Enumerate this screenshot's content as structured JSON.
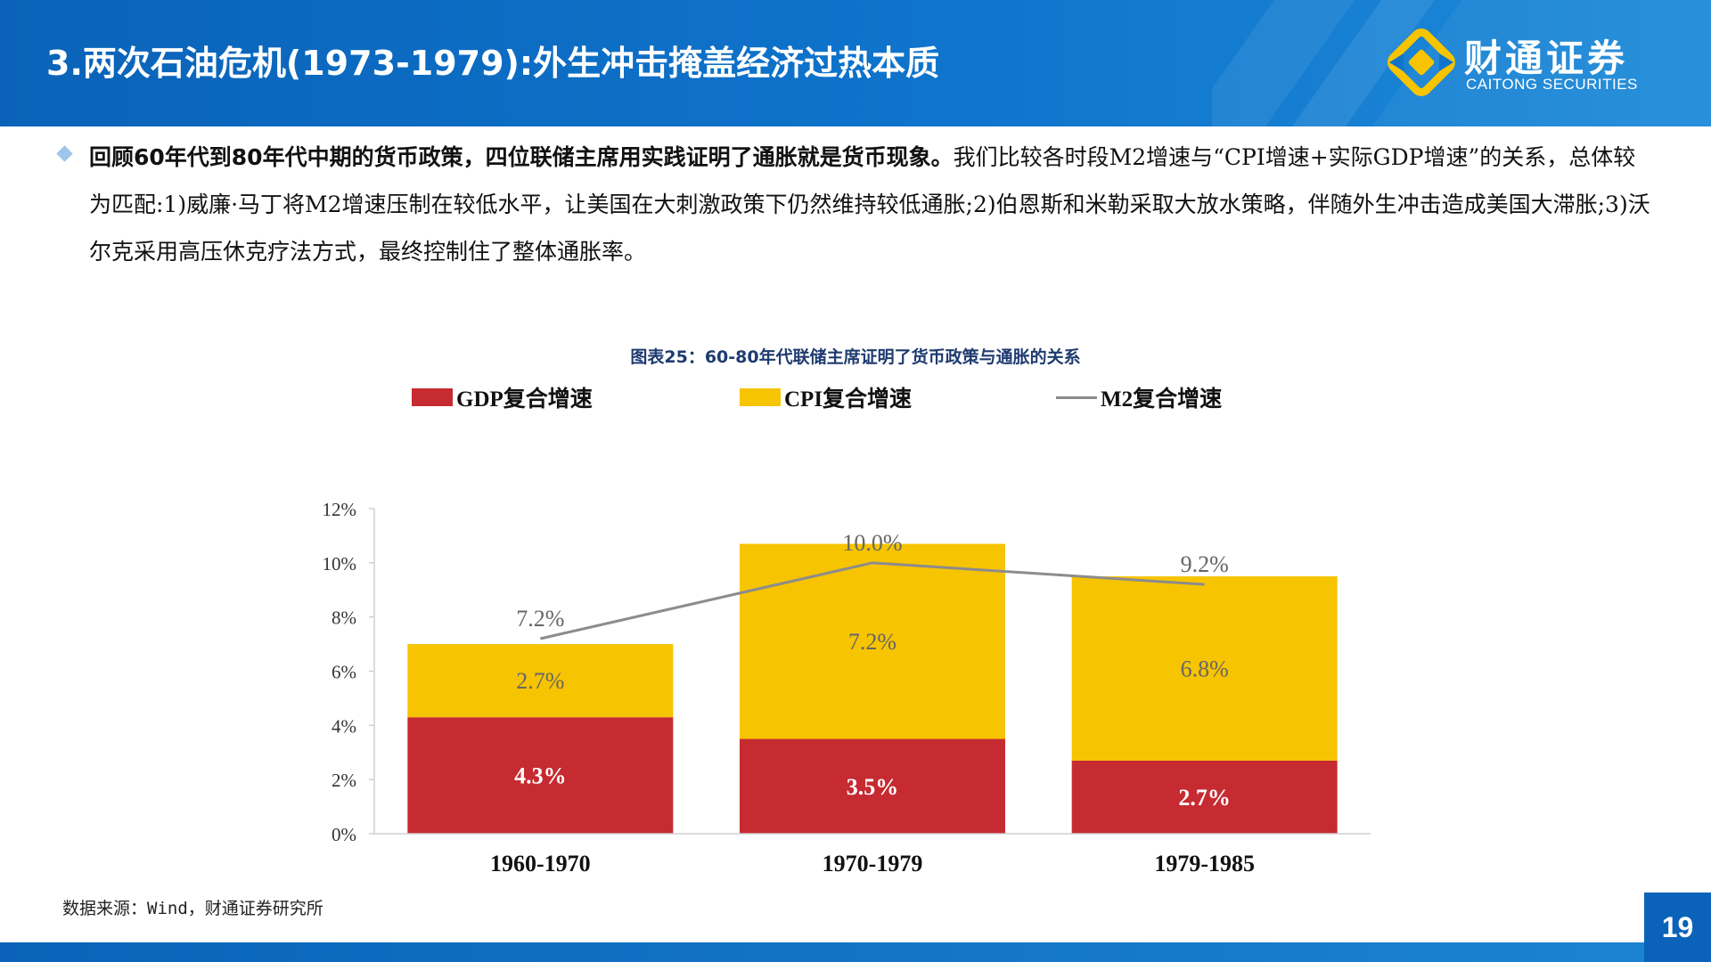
{
  "header": {
    "title": "3.两次石油危机(1973-1979):外生冲击掩盖经济过热本质"
  },
  "logo": {
    "name_cn": "财通证券",
    "name_en": "CAITONG SECURITIES",
    "icon": "caitong-logo-icon",
    "color": "#f6c400"
  },
  "intro": {
    "bold": "回顾60年代到80年代中期的货币政策，四位联储主席用实践证明了通胀就是货币现象。",
    "rest": "我们比较各时段M2增速与“CPI增速+实际GDP增速”的关系，总体较为匹配:1)威廉·马丁将M2增速压制在较低水平，让美国在大刺激政策下仍然维持较低通胀;2)伯恩斯和米勒采取大放水策略，伴随外生冲击造成美国大滞胀;3)沃尔克采用高压休克疗法方式，最终控制住了整体通胀率。"
  },
  "figure_title": "图表25：60-80年代联储主席证明了货币政策与通胀的关系",
  "chart_data": {
    "type": "bar",
    "stacked": true,
    "categories": [
      "1960-1970",
      "1970-1979",
      "1979-1985"
    ],
    "series": [
      {
        "name": "GDP复合增速",
        "type": "bar",
        "values": [
          4.3,
          3.5,
          2.7
        ],
        "labels": [
          "4.3%",
          "3.5%",
          "2.7%"
        ],
        "color": "#c62b31"
      },
      {
        "name": "CPI复合增速",
        "type": "bar",
        "values": [
          2.7,
          7.2,
          6.8
        ],
        "labels": [
          "2.7%",
          "7.2%",
          "6.8%"
        ],
        "color": "#f6c400"
      },
      {
        "name": "M2复合增速",
        "type": "line",
        "values": [
          7.2,
          10.0,
          9.2
        ],
        "labels": [
          "7.2%",
          "10.0%",
          "9.2%"
        ],
        "color": "#8c8c8c"
      }
    ],
    "yticks": [
      "0%",
      "2%",
      "4%",
      "6%",
      "8%",
      "10%",
      "12%"
    ],
    "ylim": [
      0,
      12
    ],
    "legend_position": "top",
    "grid": false
  },
  "source": "数据来源：Wind，财通证券研究所",
  "page_number": "19",
  "colors": {
    "primary": "#0a63b8",
    "bar_gdp": "#c62b31",
    "bar_cpi": "#f6c400",
    "line_m2": "#8c8c8c"
  }
}
